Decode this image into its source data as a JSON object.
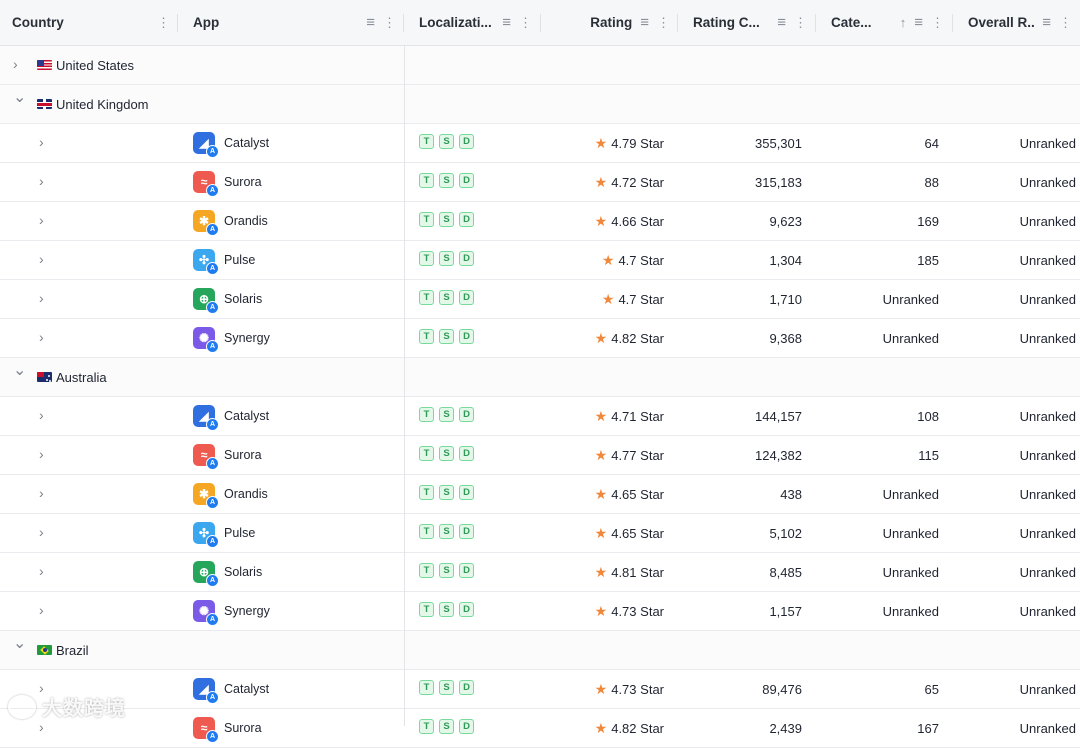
{
  "columns": [
    {
      "label": "Country",
      "icons": [
        "more-icon"
      ]
    },
    {
      "label": "App",
      "icons": [
        "filter-icon",
        "more-icon"
      ]
    },
    {
      "label": "Localizati...",
      "icons": [
        "filter-icon",
        "more-icon"
      ]
    },
    {
      "label": "Rating",
      "icons": [
        "filter-icon",
        "more-icon"
      ]
    },
    {
      "label": "Rating C...",
      "icons": [
        "filter-icon",
        "more-icon"
      ]
    },
    {
      "label": "Cate...",
      "icons": [
        "sort-asc-icon",
        "filter-icon",
        "more-icon"
      ]
    },
    {
      "label": "Overall R...",
      "icons": [
        "filter-icon",
        "more-icon"
      ]
    }
  ],
  "badge_letters": [
    "T",
    "S",
    "D"
  ],
  "star_suffix": "Star",
  "rows": [
    {
      "type": "group",
      "country": "United States",
      "flag": "us",
      "expanded": false
    },
    {
      "type": "group",
      "country": "United Kingdom",
      "flag": "uk",
      "expanded": true
    },
    {
      "type": "app",
      "name": "Catalyst",
      "icon": "catalyst",
      "rating": "4.79",
      "count": "355,301",
      "category": "64",
      "overall": "Unranked"
    },
    {
      "type": "app",
      "name": "Surora",
      "icon": "surora",
      "rating": "4.72",
      "count": "315,183",
      "category": "88",
      "overall": "Unranked"
    },
    {
      "type": "app",
      "name": "Orandis",
      "icon": "orandis",
      "rating": "4.66",
      "count": "9,623",
      "category": "169",
      "overall": "Unranked"
    },
    {
      "type": "app",
      "name": "Pulse",
      "icon": "pulse",
      "rating": "4.7",
      "count": "1,304",
      "category": "185",
      "overall": "Unranked"
    },
    {
      "type": "app",
      "name": "Solaris",
      "icon": "solaris",
      "rating": "4.7",
      "count": "1,710",
      "category": "Unranked",
      "overall": "Unranked"
    },
    {
      "type": "app",
      "name": "Synergy",
      "icon": "synergy",
      "rating": "4.82",
      "count": "9,368",
      "category": "Unranked",
      "overall": "Unranked"
    },
    {
      "type": "group",
      "country": "Australia",
      "flag": "au",
      "expanded": true
    },
    {
      "type": "app",
      "name": "Catalyst",
      "icon": "catalyst",
      "rating": "4.71",
      "count": "144,157",
      "category": "108",
      "overall": "Unranked"
    },
    {
      "type": "app",
      "name": "Surora",
      "icon": "surora",
      "rating": "4.77",
      "count": "124,382",
      "category": "115",
      "overall": "Unranked"
    },
    {
      "type": "app",
      "name": "Orandis",
      "icon": "orandis",
      "rating": "4.65",
      "count": "438",
      "category": "Unranked",
      "overall": "Unranked"
    },
    {
      "type": "app",
      "name": "Pulse",
      "icon": "pulse",
      "rating": "4.65",
      "count": "5,102",
      "category": "Unranked",
      "overall": "Unranked"
    },
    {
      "type": "app",
      "name": "Solaris",
      "icon": "solaris",
      "rating": "4.81",
      "count": "8,485",
      "category": "Unranked",
      "overall": "Unranked"
    },
    {
      "type": "app",
      "name": "Synergy",
      "icon": "synergy",
      "rating": "4.73",
      "count": "1,157",
      "category": "Unranked",
      "overall": "Unranked"
    },
    {
      "type": "group",
      "country": "Brazil",
      "flag": "br",
      "expanded": true
    },
    {
      "type": "app",
      "name": "Catalyst",
      "icon": "catalyst",
      "rating": "4.73",
      "count": "89,476",
      "category": "65",
      "overall": "Unranked"
    },
    {
      "type": "app",
      "name": "Surora",
      "icon": "surora",
      "rating": "4.82",
      "count": "2,439",
      "category": "167",
      "overall": "Unranked"
    }
  ],
  "app_icon_colors": {
    "catalyst": "#2f6fe0",
    "surora": "#ee5a4f",
    "orandis": "#f5a623",
    "pulse": "#3aa7ef",
    "solaris": "#25a65a",
    "synergy": "#7a5ae6"
  },
  "watermark": "大数跨境"
}
